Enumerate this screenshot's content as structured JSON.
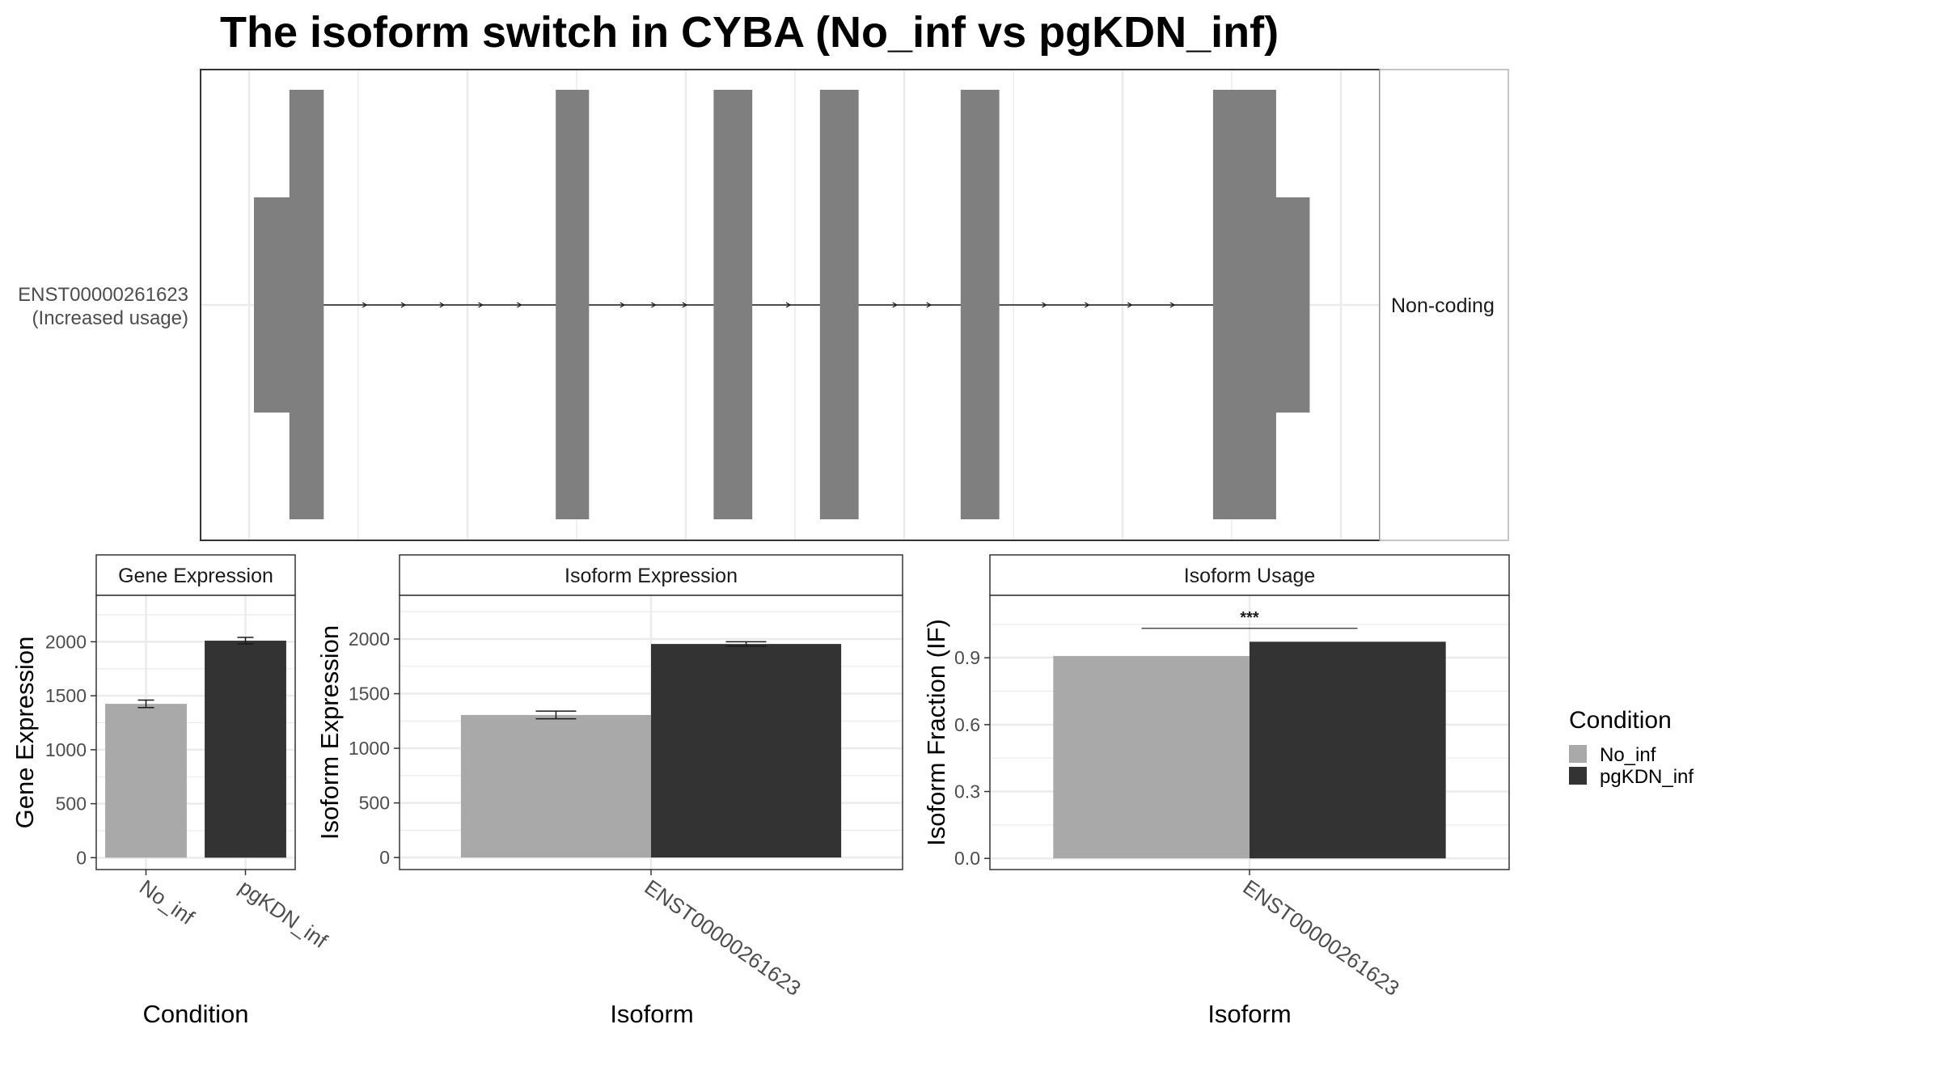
{
  "title": "The isoform switch in CYBA (No_inf vs pgKDN_inf)",
  "colors": {
    "No_inf": "#a9a9a9",
    "pgKDN_inf": "#333333",
    "exon": "#7f7f7f",
    "grid": "#ebebeb",
    "panel_border": "#333333",
    "strip_border": "#b3b3b3"
  },
  "legend": {
    "title": "Condition",
    "entries": [
      "No_inf",
      "pgKDN_inf"
    ]
  },
  "transcript_panel": {
    "isoform_label_line1": "ENST00000261623",
    "isoform_label_line2": "(Increased usage)",
    "facet_label": "Non-coding"
  },
  "chart_data": [
    {
      "type": "gene_structure",
      "isoform": "ENST00000261623",
      "annotation": "(Increased usage)",
      "category": "Non-coding",
      "exons_relative": [
        {
          "start": 0.0,
          "end": 0.065,
          "kind": "utr",
          "utr_start": 0.0,
          "utr_end": 0.033,
          "cds_start": 0.033,
          "cds_end": 0.065
        },
        {
          "start": 0.281,
          "end": 0.312,
          "kind": "cds"
        },
        {
          "start": 0.428,
          "end": 0.464,
          "kind": "cds"
        },
        {
          "start": 0.527,
          "end": 0.563,
          "kind": "cds"
        },
        {
          "start": 0.658,
          "end": 0.694,
          "kind": "cds"
        },
        {
          "start": 0.893,
          "end": 0.951,
          "kind": "utr_end",
          "utr_start": 0.951,
          "utr_end": 0.983
        }
      ],
      "intron_arrows": true
    },
    {
      "type": "bar",
      "title": "Gene Expression",
      "xlabel": "Condition",
      "ylabel": "Gene Expression",
      "categories": [
        "No_inf",
        "pgKDN_inf"
      ],
      "values": [
        1425,
        2010
      ],
      "errors": [
        35,
        30
      ],
      "yticks": [
        0,
        500,
        1000,
        1500,
        2000
      ],
      "ylim": [
        -110,
        2430
      ]
    },
    {
      "type": "bar",
      "title": "Isoform Expression",
      "xlabel": "Isoform",
      "ylabel": "Isoform Expression",
      "categories": [
        "ENST00000261623"
      ],
      "series": [
        {
          "name": "No_inf",
          "values": [
            1305
          ],
          "errors": [
            35
          ]
        },
        {
          "name": "pgKDN_inf",
          "values": [
            1955
          ],
          "errors": [
            20
          ]
        }
      ],
      "yticks": [
        0,
        500,
        1000,
        1500,
        2000
      ],
      "ylim": [
        -110,
        2400
      ]
    },
    {
      "type": "bar",
      "title": "Isoform Usage",
      "xlabel": "Isoform",
      "ylabel": "Isoform Fraction (IF)",
      "categories": [
        "ENST00000261623"
      ],
      "series": [
        {
          "name": "No_inf",
          "values": [
            0.908
          ]
        },
        {
          "name": "pgKDN_inf",
          "values": [
            0.972
          ]
        }
      ],
      "significance": "***",
      "yticks": [
        0.0,
        0.3,
        0.6,
        0.9
      ],
      "yticklabels": [
        "0.0",
        "0.3",
        "0.6",
        "0.9"
      ],
      "ylim": [
        -0.05,
        1.18
      ]
    }
  ]
}
